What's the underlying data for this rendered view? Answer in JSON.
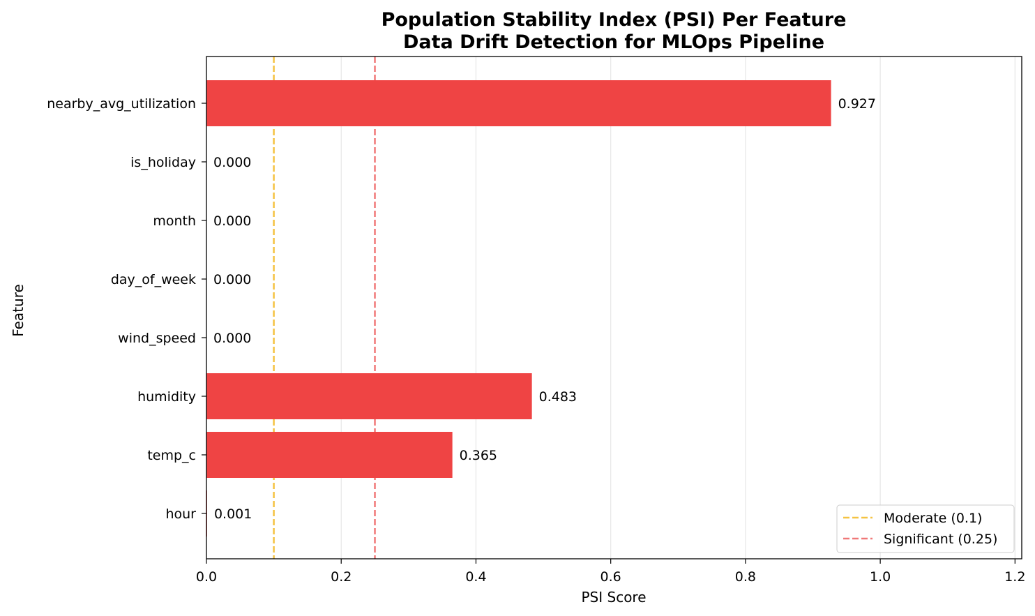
{
  "chart_data": {
    "type": "bar",
    "orientation": "horizontal",
    "title": "Population Stability Index (PSI) Per Feature",
    "subtitle": "Data Drift Detection for MLOps Pipeline",
    "xlabel": "PSI Score",
    "ylabel": "Feature",
    "categories": [
      "nearby_avg_utilization",
      "is_holiday",
      "month",
      "day_of_week",
      "wind_speed",
      "humidity",
      "temp_c",
      "hour"
    ],
    "values": [
      0.927,
      0.0,
      0.0,
      0.0,
      0.0,
      0.483,
      0.365,
      0.001
    ],
    "value_labels": [
      "0.927",
      "0.000",
      "0.000",
      "0.000",
      "0.000",
      "0.483",
      "0.365",
      "0.001"
    ],
    "xlim": [
      0,
      1.21
    ],
    "xticks": [
      0.0,
      0.2,
      0.4,
      0.6,
      0.8,
      1.0,
      1.2
    ],
    "xtick_labels": [
      "0.0",
      "0.2",
      "0.4",
      "0.6",
      "0.8",
      "1.0",
      "1.2"
    ],
    "grid": "x",
    "bar_color": "#ef4444",
    "thresholds": [
      {
        "name": "Moderate (0.1)",
        "value": 0.1,
        "color": "#f5c342",
        "style": "dashed"
      },
      {
        "name": "Significant (0.25)",
        "value": 0.25,
        "color": "#f07878",
        "style": "dashed"
      }
    ],
    "legend_position": "bottom-right"
  }
}
